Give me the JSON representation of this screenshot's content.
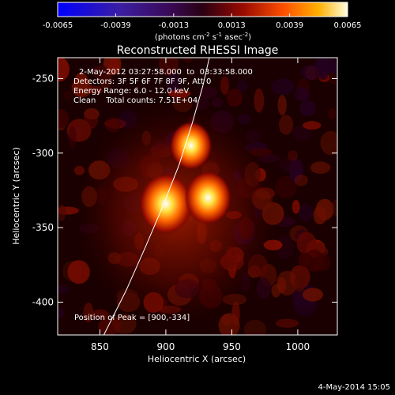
{
  "colorbar": {
    "ticks": [
      "-0.0065",
      "-0.0039",
      "-0.0013",
      "0.0013",
      "0.0039",
      "0.0065"
    ],
    "unit_text": "(photons cm",
    "unit_sup1": "-2",
    "unit_mid": " s",
    "unit_sup2": "-1",
    "unit_end": " asec",
    "unit_sup3": "-2",
    "unit_close": ")",
    "range": [
      -0.0065,
      0.0065
    ]
  },
  "chart_data": {
    "type": "heatmap",
    "title": "Reconstructed RHESSI Image",
    "xlabel": "Heliocentric X (arcsec)",
    "ylabel": "Heliocentric Y (arcsec)",
    "xlim": [
      818,
      1030
    ],
    "ylim": [
      -422,
      -236
    ],
    "x_ticks": [
      850,
      900,
      950,
      1000
    ],
    "y_ticks": [
      -250,
      -300,
      -350,
      -400
    ],
    "sources": [
      {
        "x": 900,
        "y": -334,
        "peak": 0.0065
      },
      {
        "x": 932,
        "y": -330,
        "peak": 0.0056
      },
      {
        "x": 919,
        "y": -295,
        "peak": 0.005
      }
    ],
    "limb_curve": [
      [
        853,
        -422
      ],
      [
        870,
        -392
      ],
      [
        885,
        -362
      ],
      [
        898,
        -335
      ],
      [
        910,
        -308
      ],
      [
        920,
        -280
      ],
      [
        928,
        -255
      ],
      [
        933,
        -236
      ]
    ]
  },
  "annotations": {
    "time_range": "2-May-2012 03:27:58.000  to  03:33:58.000",
    "detectors": "Detectors: 3F 5F 6F 7F 8F 9F, Att 0",
    "energy": "Energy Range: 6.0 - 12.0 keV",
    "clean": "Clean    Total counts: 7.51E+04",
    "peak": "Position of Peak = [900,-334]"
  },
  "footer": {
    "date": "4-May-2014 15:05"
  }
}
